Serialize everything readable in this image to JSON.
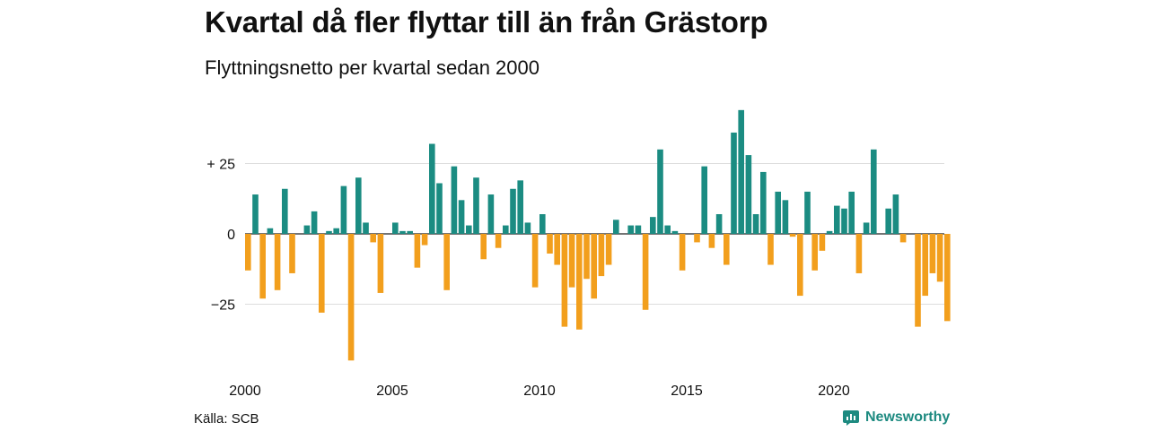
{
  "colors": {
    "positive": "#1b8c82",
    "negative": "#f29f1d",
    "grid": "#dddddd",
    "baseline": "#222222",
    "brand": "#1d8a80"
  },
  "chart_data": {
    "type": "bar",
    "title": "Kvartal då fler flyttar till än från Grästorp",
    "subtitle": "Flyttningsnetto per kvartal sedan 2000",
    "source": "Källa: SCB",
    "brand": "Newsworthy",
    "y_ticks": [
      {
        "value": 25,
        "label": "+ 25"
      },
      {
        "value": 0,
        "label": "0"
      },
      {
        "value": -25,
        "label": "−25"
      }
    ],
    "x_ticks": [
      {
        "value": 2000,
        "label": "2000"
      },
      {
        "value": 2005,
        "label": "2005"
      },
      {
        "value": 2010,
        "label": "2010"
      },
      {
        "value": 2015,
        "label": "2015"
      },
      {
        "value": 2020,
        "label": "2020"
      }
    ],
    "ylim": [
      -45,
      45
    ],
    "xlim": [
      2000,
      2024
    ],
    "grid": true,
    "categories": [
      "2000 Q1",
      "2000 Q2",
      "2000 Q3",
      "2000 Q4",
      "2001 Q1",
      "2001 Q2",
      "2001 Q3",
      "2001 Q4",
      "2002 Q1",
      "2002 Q2",
      "2002 Q3",
      "2002 Q4",
      "2003 Q1",
      "2003 Q2",
      "2003 Q3",
      "2003 Q4",
      "2004 Q1",
      "2004 Q2",
      "2004 Q3",
      "2004 Q4",
      "2005 Q1",
      "2005 Q2",
      "2005 Q3",
      "2005 Q4",
      "2006 Q1",
      "2006 Q2",
      "2006 Q3",
      "2006 Q4",
      "2007 Q1",
      "2007 Q2",
      "2007 Q3",
      "2007 Q4",
      "2008 Q1",
      "2008 Q2",
      "2008 Q3",
      "2008 Q4",
      "2009 Q1",
      "2009 Q2",
      "2009 Q3",
      "2009 Q4",
      "2010 Q1",
      "2010 Q2",
      "2010 Q3",
      "2010 Q4",
      "2011 Q1",
      "2011 Q2",
      "2011 Q3",
      "2011 Q4",
      "2012 Q1",
      "2012 Q2",
      "2012 Q3",
      "2012 Q4",
      "2013 Q1",
      "2013 Q2",
      "2013 Q3",
      "2013 Q4",
      "2014 Q1",
      "2014 Q2",
      "2014 Q3",
      "2014 Q4",
      "2015 Q1",
      "2015 Q2",
      "2015 Q3",
      "2015 Q4",
      "2016 Q1",
      "2016 Q2",
      "2016 Q3",
      "2016 Q4",
      "2017 Q1",
      "2017 Q2",
      "2017 Q3",
      "2017 Q4",
      "2018 Q1",
      "2018 Q2",
      "2018 Q3",
      "2018 Q4",
      "2019 Q1",
      "2019 Q2",
      "2019 Q3",
      "2019 Q4",
      "2020 Q1",
      "2020 Q2",
      "2020 Q3",
      "2020 Q4",
      "2021 Q1",
      "2021 Q2",
      "2021 Q3",
      "2021 Q4",
      "2022 Q1",
      "2022 Q2",
      "2022 Q3",
      "2022 Q4",
      "2023 Q1",
      "2023 Q2",
      "2023 Q3",
      "2023 Q4"
    ],
    "values": [
      -13,
      14,
      -23,
      2,
      -20,
      16,
      -14,
      0,
      3,
      8,
      -28,
      1,
      2,
      17,
      -45,
      20,
      4,
      -3,
      -21,
      0,
      4,
      1,
      1,
      -12,
      -4,
      32,
      18,
      -20,
      24,
      12,
      3,
      20,
      -9,
      14,
      -5,
      3,
      16,
      19,
      4,
      -19,
      7,
      -7,
      -11,
      -33,
      -19,
      -34,
      -16,
      -23,
      -15,
      -11,
      5,
      0,
      3,
      3,
      -27,
      6,
      30,
      3,
      1,
      -13,
      0,
      -3,
      24,
      -5,
      7,
      -11,
      36,
      44,
      28,
      7,
      22,
      -11,
      15,
      12,
      -1,
      -22,
      15,
      -13,
      -6,
      1,
      10,
      9,
      15,
      -14,
      4,
      30,
      0,
      9,
      14,
      -3,
      0,
      -33,
      -22,
      -14,
      -17,
      -31
    ]
  }
}
